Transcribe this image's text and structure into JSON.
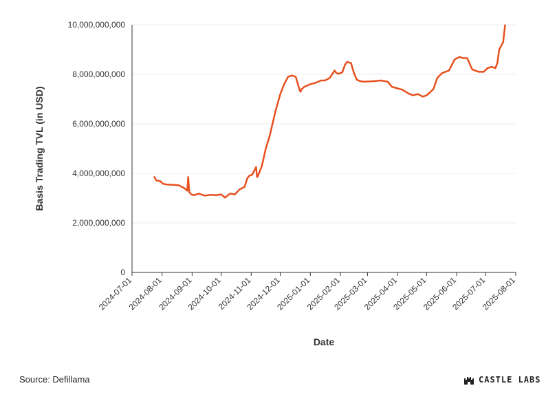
{
  "chart_data": {
    "type": "line",
    "xlabel": "Date",
    "ylabel": "Basis Trading TVL (in USD)",
    "ylim": [
      0,
      10000000000
    ],
    "yticks": [
      0,
      2000000000,
      4000000000,
      6000000000,
      8000000000,
      10000000000
    ],
    "ytick_labels": [
      "0",
      "2,000,000,000",
      "4,000,000,000",
      "6,000,000,000",
      "8,000,000,000",
      "10,000,000,000"
    ],
    "xlim": [
      "2024-07-01",
      "2025-08-01"
    ],
    "xtick_labels": [
      "2024-07-01",
      "2024-08-01",
      "2024-09-01",
      "2024-10-01",
      "2024-11-01",
      "2024-12-01",
      "2025-01-01",
      "2025-02-01",
      "2025-03-01",
      "2025-04-01",
      "2025-05-01",
      "2025-06-01",
      "2025-07-01",
      "2025-08-01"
    ],
    "grid": true,
    "color": "#E8501E",
    "series": [
      {
        "x": [
          "2024-07-24",
          "2024-07-26",
          "2024-07-30",
          "2024-08-02",
          "2024-08-06",
          "2024-08-12",
          "2024-08-18",
          "2024-08-24",
          "2024-08-27",
          "2024-08-28",
          "2024-08-29",
          "2024-08-31",
          "2024-09-03",
          "2024-09-08",
          "2024-09-14",
          "2024-09-20",
          "2024-09-26",
          "2024-10-01",
          "2024-10-05",
          "2024-10-09",
          "2024-10-11",
          "2024-10-15",
          "2024-10-20",
          "2024-10-25",
          "2024-10-28",
          "2024-10-30",
          "2024-11-02",
          "2024-11-06",
          "2024-11-07",
          "2024-11-08",
          "2024-11-12",
          "2024-11-16",
          "2024-11-20",
          "2024-11-26",
          "2024-12-01",
          "2024-12-05",
          "2024-12-09",
          "2024-12-13",
          "2024-12-17",
          "2024-12-21",
          "2024-12-22",
          "2024-12-23",
          "2024-12-26",
          "2025-01-01",
          "2025-01-06",
          "2025-01-12",
          "2025-01-16",
          "2025-01-21",
          "2025-01-26",
          "2025-01-28",
          "2025-01-30",
          "2025-02-03",
          "2025-02-06",
          "2025-02-08",
          "2025-02-12",
          "2025-02-15",
          "2025-02-18",
          "2025-02-21",
          "2025-02-25",
          "2025-03-06",
          "2025-03-15",
          "2025-03-22",
          "2025-03-26",
          "2025-04-01",
          "2025-04-06",
          "2025-04-12",
          "2025-04-17",
          "2025-04-22",
          "2025-04-27",
          "2025-05-01",
          "2025-05-04",
          "2025-05-08",
          "2025-05-12",
          "2025-05-17",
          "2025-05-24",
          "2025-05-30",
          "2025-06-04",
          "2025-06-08",
          "2025-06-12",
          "2025-06-17",
          "2025-06-20",
          "2025-06-24",
          "2025-06-29",
          "2025-07-03",
          "2025-07-07",
          "2025-07-11",
          "2025-07-13",
          "2025-07-15",
          "2025-07-19",
          "2025-07-21"
        ],
        "values": [
          3850000000,
          3720000000,
          3680000000,
          3580000000,
          3550000000,
          3540000000,
          3520000000,
          3400000000,
          3300000000,
          3850000000,
          3250000000,
          3150000000,
          3120000000,
          3180000000,
          3100000000,
          3130000000,
          3120000000,
          3150000000,
          3020000000,
          3150000000,
          3180000000,
          3150000000,
          3350000000,
          3450000000,
          3800000000,
          3900000000,
          3950000000,
          4250000000,
          3850000000,
          3900000000,
          4300000000,
          5000000000,
          5500000000,
          6500000000,
          7200000000,
          7600000000,
          7900000000,
          7950000000,
          7900000000,
          7350000000,
          7300000000,
          7400000000,
          7500000000,
          7600000000,
          7650000000,
          7750000000,
          7750000000,
          7850000000,
          8150000000,
          8050000000,
          8020000000,
          8080000000,
          8400000000,
          8500000000,
          8450000000,
          8050000000,
          7780000000,
          7730000000,
          7700000000,
          7720000000,
          7750000000,
          7700000000,
          7500000000,
          7430000000,
          7380000000,
          7230000000,
          7150000000,
          7200000000,
          7100000000,
          7150000000,
          7250000000,
          7400000000,
          7850000000,
          8050000000,
          8150000000,
          8600000000,
          8700000000,
          8650000000,
          8650000000,
          8200000000,
          8150000000,
          8100000000,
          8100000000,
          8250000000,
          8300000000,
          8250000000,
          8450000000,
          9000000000,
          9300000000,
          9980000000
        ]
      }
    ]
  },
  "footer": {
    "source_text": "Source: Defillama",
    "brand_text": "CASTLE LABS",
    "brand_icon": "castle-icon"
  }
}
